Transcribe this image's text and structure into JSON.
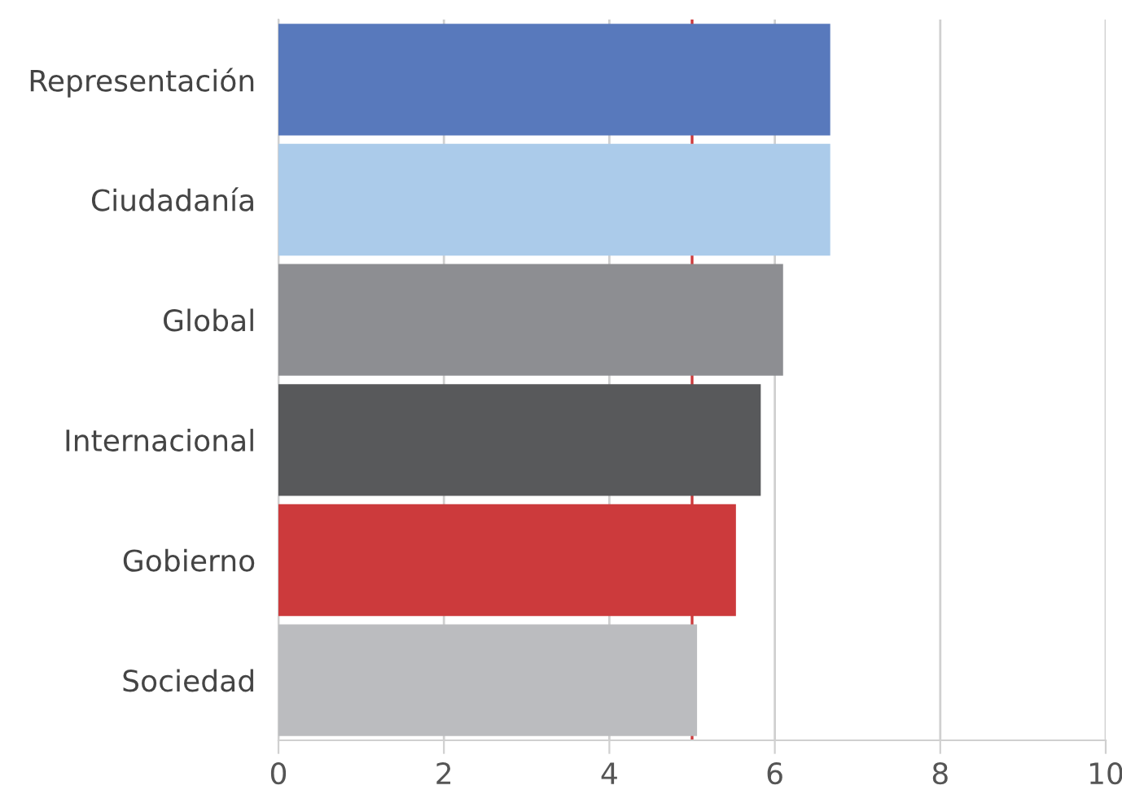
{
  "chart_data": {
    "type": "bar",
    "orientation": "horizontal",
    "categories": [
      "Representación",
      "Ciudadanía",
      "Global",
      "Internacional",
      "Gobierno",
      "Sociedad"
    ],
    "values": [
      6.67,
      6.67,
      6.1,
      5.83,
      5.53,
      5.06
    ],
    "colors": [
      "#5879bc",
      "#abcbea",
      "#8d8e92",
      "#58595b",
      "#cc3a3c",
      "#bbbcbf"
    ],
    "xlim": [
      0,
      10
    ],
    "xticks": [
      0,
      2,
      4,
      6,
      8,
      10
    ],
    "grid": "x",
    "ref_lines": [
      {
        "axis": "x",
        "value": 5,
        "color": "#cc3a3c"
      }
    ]
  }
}
